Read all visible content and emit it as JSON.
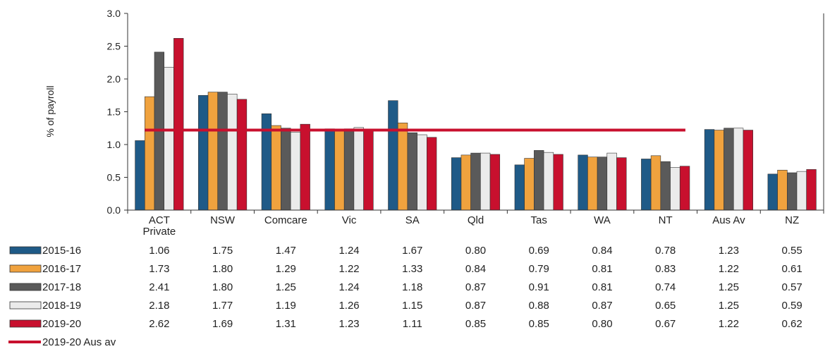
{
  "chart_data": {
    "type": "bar",
    "ylabel": "% of payroll",
    "ylim": [
      0,
      3.0
    ],
    "yticks": [
      "0.0",
      "0.5",
      "1.0",
      "1.5",
      "2.0",
      "2.5",
      "3.0"
    ],
    "grid": false,
    "legend_position": "bottom-left (data table)",
    "categories": [
      "ACT Private",
      "NSW",
      "Comcare",
      "Vic",
      "SA",
      "Qld",
      "Tas",
      "WA",
      "NT",
      "Aus Av",
      "NZ"
    ],
    "category_labels": [
      [
        "ACT",
        "Private"
      ],
      [
        "NSW"
      ],
      [
        "Comcare"
      ],
      [
        "Vic"
      ],
      [
        "SA"
      ],
      [
        "Qld"
      ],
      [
        "Tas"
      ],
      [
        "WA"
      ],
      [
        "NT"
      ],
      [
        "Aus Av"
      ],
      [
        "NZ"
      ]
    ],
    "series": [
      {
        "name": "2015-16",
        "color": "#1f5a87",
        "values": [
          1.06,
          1.75,
          1.47,
          1.24,
          1.67,
          0.8,
          0.69,
          0.84,
          0.78,
          1.23,
          0.55
        ],
        "labels": [
          "1.06",
          "1.75",
          "1.47",
          "1.24",
          "1.67",
          "0.80",
          "0.69",
          "0.84",
          "0.78",
          "1.23",
          "0.55"
        ]
      },
      {
        "name": "2016-17",
        "color": "#f0a23e",
        "values": [
          1.73,
          1.8,
          1.29,
          1.22,
          1.33,
          0.84,
          0.79,
          0.81,
          0.83,
          1.22,
          0.61
        ],
        "labels": [
          "1.73",
          "1.80",
          "1.29",
          "1.22",
          "1.33",
          "0.84",
          "0.79",
          "0.81",
          "0.83",
          "1.22",
          "0.61"
        ]
      },
      {
        "name": "2017-18",
        "color": "#5a5a5a",
        "values": [
          2.41,
          1.8,
          1.25,
          1.24,
          1.18,
          0.87,
          0.91,
          0.81,
          0.74,
          1.25,
          0.57
        ],
        "labels": [
          "2.41",
          "1.80",
          "1.25",
          "1.24",
          "1.18",
          "0.87",
          "0.91",
          "0.81",
          "0.74",
          "1.25",
          "0.57"
        ]
      },
      {
        "name": "2018-19",
        "color": "#ebebeb",
        "values": [
          2.18,
          1.77,
          1.19,
          1.26,
          1.15,
          0.87,
          0.88,
          0.87,
          0.65,
          1.25,
          0.59
        ],
        "labels": [
          "2.18",
          "1.77",
          "1.19",
          "1.26",
          "1.15",
          "0.87",
          "0.88",
          "0.87",
          "0.65",
          "1.25",
          "0.59"
        ]
      },
      {
        "name": "2019-20",
        "color": "#c8102e",
        "values": [
          2.62,
          1.69,
          1.31,
          1.23,
          1.11,
          0.85,
          0.85,
          0.8,
          0.67,
          1.22,
          0.62
        ],
        "labels": [
          "2.62",
          "1.69",
          "1.31",
          "1.23",
          "1.11",
          "0.85",
          "0.85",
          "0.80",
          "0.67",
          "1.22",
          "0.62"
        ]
      }
    ],
    "reference_line": {
      "name": "2019-20 Aus av",
      "value": 1.22,
      "color": "#c8102e",
      "from_category": "ACT Private",
      "to_category": "NT"
    }
  }
}
